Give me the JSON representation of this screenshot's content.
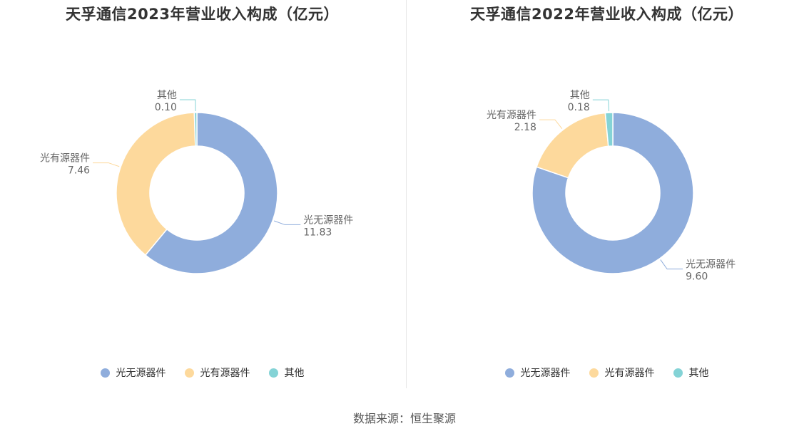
{
  "chart_data": [
    {
      "type": "pie",
      "title": "天孚通信2023年营业收入构成（亿元）",
      "categories": [
        "光无源器件",
        "光有源器件",
        "其他"
      ],
      "values": [
        11.83,
        7.46,
        0.1
      ],
      "value_labels": [
        "11.83",
        "7.46",
        "0.10"
      ],
      "colors": [
        "#8faddc",
        "#fdd99c",
        "#84d3d6"
      ],
      "legend_position": "bottom"
    },
    {
      "type": "pie",
      "title": "天孚通信2022年营业收入构成（亿元）",
      "categories": [
        "光无源器件",
        "光有源器件",
        "其他"
      ],
      "values": [
        9.6,
        2.18,
        0.18
      ],
      "value_labels": [
        "9.60",
        "2.18",
        "0.18"
      ],
      "colors": [
        "#8faddc",
        "#fdd99c",
        "#84d3d6"
      ],
      "legend_position": "bottom"
    }
  ],
  "source": "数据来源：恒生聚源"
}
